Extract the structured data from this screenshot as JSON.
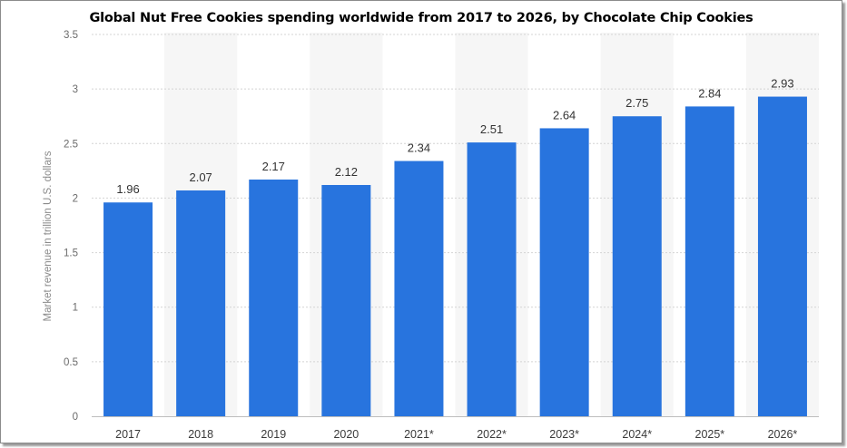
{
  "chart_data": {
    "type": "bar",
    "title": "Global Nut Free Cookies spending worldwide from 2017 to 2026, by Chocolate Chip Cookies",
    "xlabel": "",
    "ylabel": "Market revenue in trillion U.S. dollars",
    "categories": [
      "2017",
      "2018",
      "2019",
      "2020",
      "2021*",
      "2022*",
      "2023*",
      "2024*",
      "2025*",
      "2026*"
    ],
    "values": [
      1.96,
      2.07,
      2.17,
      2.12,
      2.34,
      2.51,
      2.64,
      2.75,
      2.84,
      2.93
    ],
    "value_labels": [
      "1.96",
      "2.07",
      "2.17",
      "2.12",
      "2.34",
      "2.51",
      "2.64",
      "2.75",
      "2.84",
      "2.93"
    ],
    "ylim": [
      0,
      3.5
    ],
    "yticks": [
      "0",
      "0.5",
      "1",
      "1.5",
      "2",
      "2.5",
      "3",
      "3.5"
    ],
    "grid": true,
    "bar_color": "#2874de",
    "band_color": "#f6f6f6"
  }
}
